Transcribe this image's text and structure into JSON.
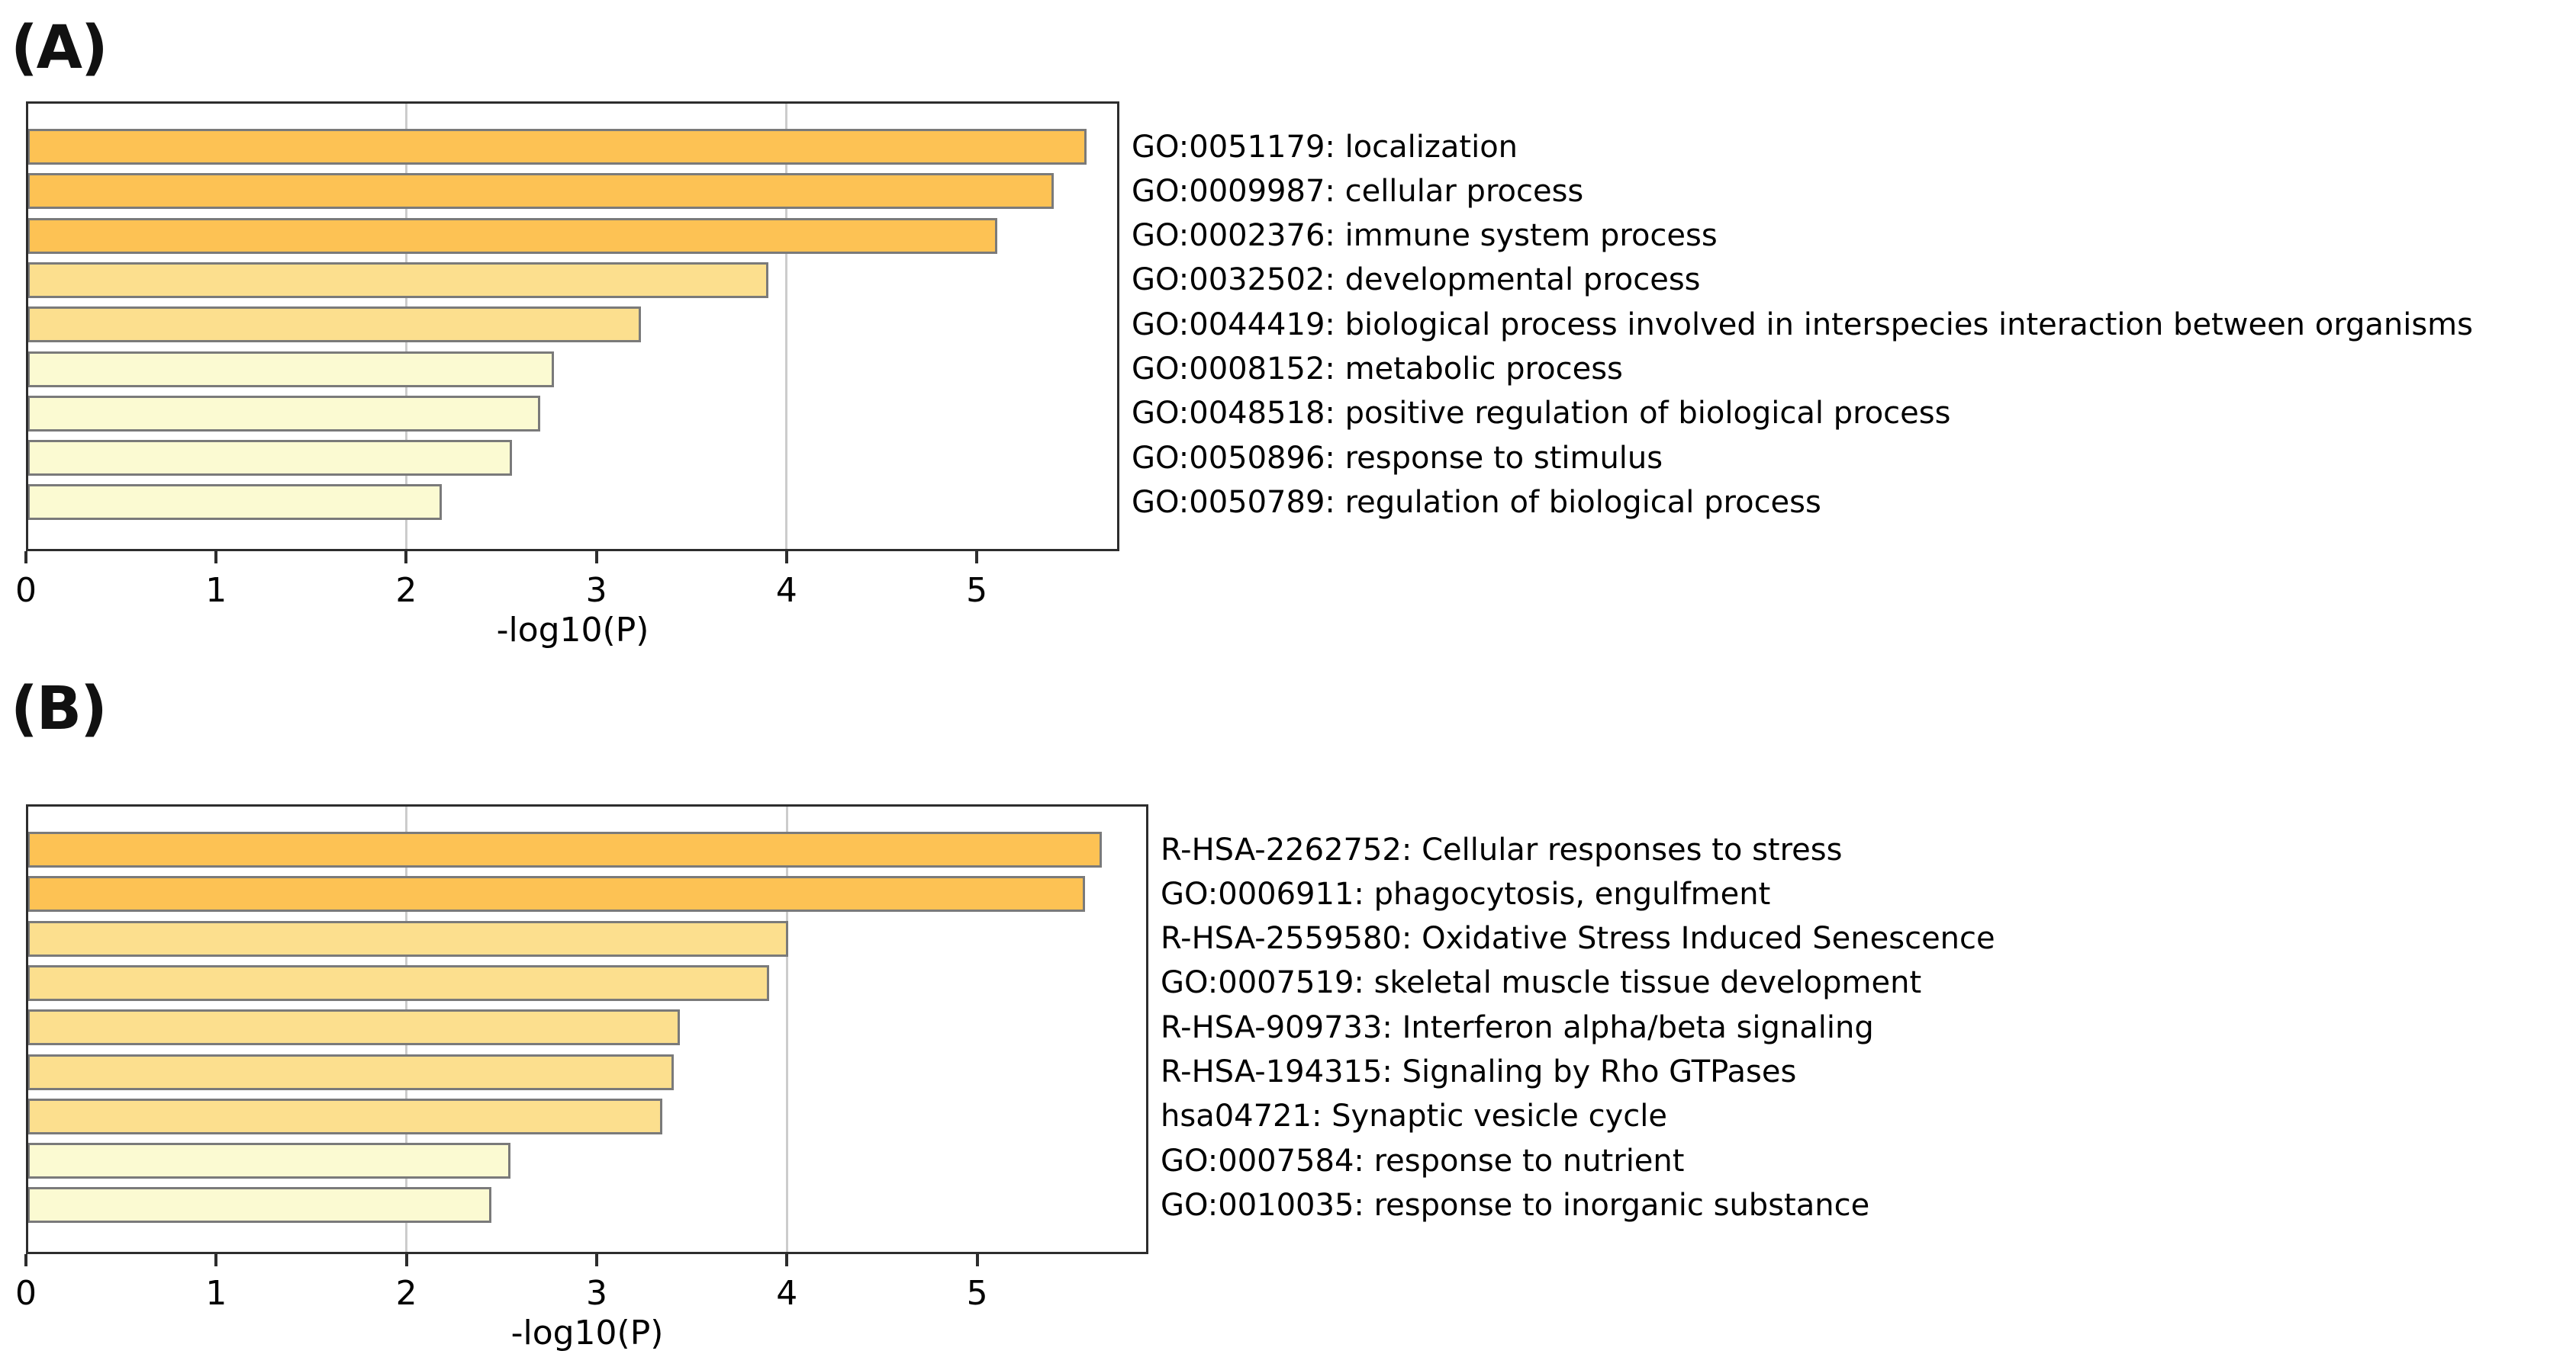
{
  "figure": {
    "background": "#ffffff"
  },
  "color_scale": {
    "bin_4_6": "#FDC254",
    "bin_3_4": "#FCDF8E",
    "bin_2_3": "#FBFAD2",
    "bar_border": "#7a7a7a",
    "box_border": "#2d2d2d",
    "gridline": "#cccccc",
    "text": "#000000"
  },
  "panels": [
    {
      "title": "(A)",
      "axis": {
        "label": "-log10(P)",
        "ticks": [
          "0",
          "1",
          "2",
          "3",
          "4",
          "5"
        ],
        "tick_values": [
          0,
          1,
          2,
          3,
          4,
          5
        ],
        "max": 5.75,
        "gridlines": [
          2,
          4
        ]
      },
      "bars": [
        {
          "label": "GO:0051179: localization",
          "value": 5.57,
          "bin": "bin_4_6"
        },
        {
          "label": "GO:0009987: cellular process",
          "value": 5.4,
          "bin": "bin_4_6"
        },
        {
          "label": "GO:0002376: immune system process",
          "value": 5.1,
          "bin": "bin_4_6"
        },
        {
          "label": "GO:0032502: developmental process",
          "value": 3.9,
          "bin": "bin_3_4"
        },
        {
          "label": "GO:0044419: biological process involved in interspecies interaction between organisms",
          "value": 3.23,
          "bin": "bin_3_4"
        },
        {
          "label": "GO:0008152: metabolic process",
          "value": 2.77,
          "bin": "bin_2_3"
        },
        {
          "label": "GO:0048518: positive regulation of biological process",
          "value": 2.7,
          "bin": "bin_2_3"
        },
        {
          "label": "GO:0050896: response to stimulus",
          "value": 2.55,
          "bin": "bin_2_3"
        },
        {
          "label": "GO:0050789: regulation of biological process",
          "value": 2.18,
          "bin": "bin_2_3"
        }
      ]
    },
    {
      "title": "(B)",
      "axis": {
        "label": "-log10(P)",
        "ticks": [
          "0",
          "1",
          "2",
          "3",
          "4",
          "5"
        ],
        "tick_values": [
          0,
          1,
          2,
          3,
          4,
          5
        ],
        "max": 5.9,
        "gridlines": [
          2,
          4
        ]
      },
      "bars": [
        {
          "label": "R-HSA-2262752: Cellular responses to stress",
          "value": 5.65,
          "bin": "bin_4_6"
        },
        {
          "label": "GO:0006911: phagocytosis, engulfment",
          "value": 5.56,
          "bin": "bin_4_6"
        },
        {
          "label": "R-HSA-2559580: Oxidative Stress Induced Senescence",
          "value": 4.0,
          "bin": "bin_3_4"
        },
        {
          "label": "GO:0007519: skeletal muscle tissue development",
          "value": 3.9,
          "bin": "bin_3_4"
        },
        {
          "label": "R-HSA-909733: Interferon alpha/beta signaling",
          "value": 3.43,
          "bin": "bin_3_4"
        },
        {
          "label": "R-HSA-194315: Signaling by Rho GTPases",
          "value": 3.4,
          "bin": "bin_3_4"
        },
        {
          "label": "hsa04721: Synaptic vesicle cycle",
          "value": 3.34,
          "bin": "bin_3_4"
        },
        {
          "label": "GO:0007584: response to nutrient",
          "value": 2.54,
          "bin": "bin_2_3"
        },
        {
          "label": "GO:0010035: response to inorganic substance",
          "value": 2.44,
          "bin": "bin_2_3"
        }
      ]
    }
  ],
  "chart_data": [
    {
      "type": "bar",
      "orientation": "horizontal",
      "title": "(A)",
      "categories": [
        "GO:0051179: localization",
        "GO:0009987: cellular process",
        "GO:0002376: immune system process",
        "GO:0032502: developmental process",
        "GO:0044419: biological process involved in interspecies interaction between organisms",
        "GO:0008152: metabolic process",
        "GO:0048518: positive regulation of biological process",
        "GO:0050896: response to stimulus",
        "GO:0050789: regulation of biological process"
      ],
      "values": [
        5.57,
        5.4,
        5.1,
        3.9,
        3.23,
        2.77,
        2.7,
        2.55,
        2.18
      ],
      "bar_colors": [
        "#FDC254",
        "#FDC254",
        "#FDC254",
        "#FCDF8E",
        "#FCDF8E",
        "#FBFAD2",
        "#FBFAD2",
        "#FBFAD2",
        "#FBFAD2"
      ],
      "xlabel": "-log10(P)",
      "ylabel": "",
      "xlim": [
        0,
        5.75
      ],
      "xticks": [
        0,
        1,
        2,
        3,
        4,
        5
      ],
      "gridlines_x": [
        2,
        4
      ],
      "grid": "partial-vertical",
      "legend": "none",
      "category_labels_position": "right"
    },
    {
      "type": "bar",
      "orientation": "horizontal",
      "title": "(B)",
      "categories": [
        "R-HSA-2262752: Cellular responses to stress",
        "GO:0006911: phagocytosis, engulfment",
        "R-HSA-2559580: Oxidative Stress Induced Senescence",
        "GO:0007519: skeletal muscle tissue development",
        "R-HSA-909733: Interferon alpha/beta signaling",
        "R-HSA-194315: Signaling by Rho GTPases",
        "hsa04721: Synaptic vesicle cycle",
        "GO:0007584: response to nutrient",
        "GO:0010035: response to inorganic substance"
      ],
      "values": [
        5.65,
        5.56,
        4.0,
        3.9,
        3.43,
        3.4,
        3.34,
        2.54,
        2.44
      ],
      "bar_colors": [
        "#FDC254",
        "#FDC254",
        "#FCDF8E",
        "#FCDF8E",
        "#FCDF8E",
        "#FCDF8E",
        "#FCDF8E",
        "#FBFAD2",
        "#FBFAD2"
      ],
      "xlabel": "-log10(P)",
      "ylabel": "",
      "xlim": [
        0,
        5.9
      ],
      "xticks": [
        0,
        1,
        2,
        3,
        4,
        5
      ],
      "gridlines_x": [
        2,
        4
      ],
      "grid": "partial-vertical",
      "legend": "none",
      "category_labels_position": "right"
    }
  ]
}
